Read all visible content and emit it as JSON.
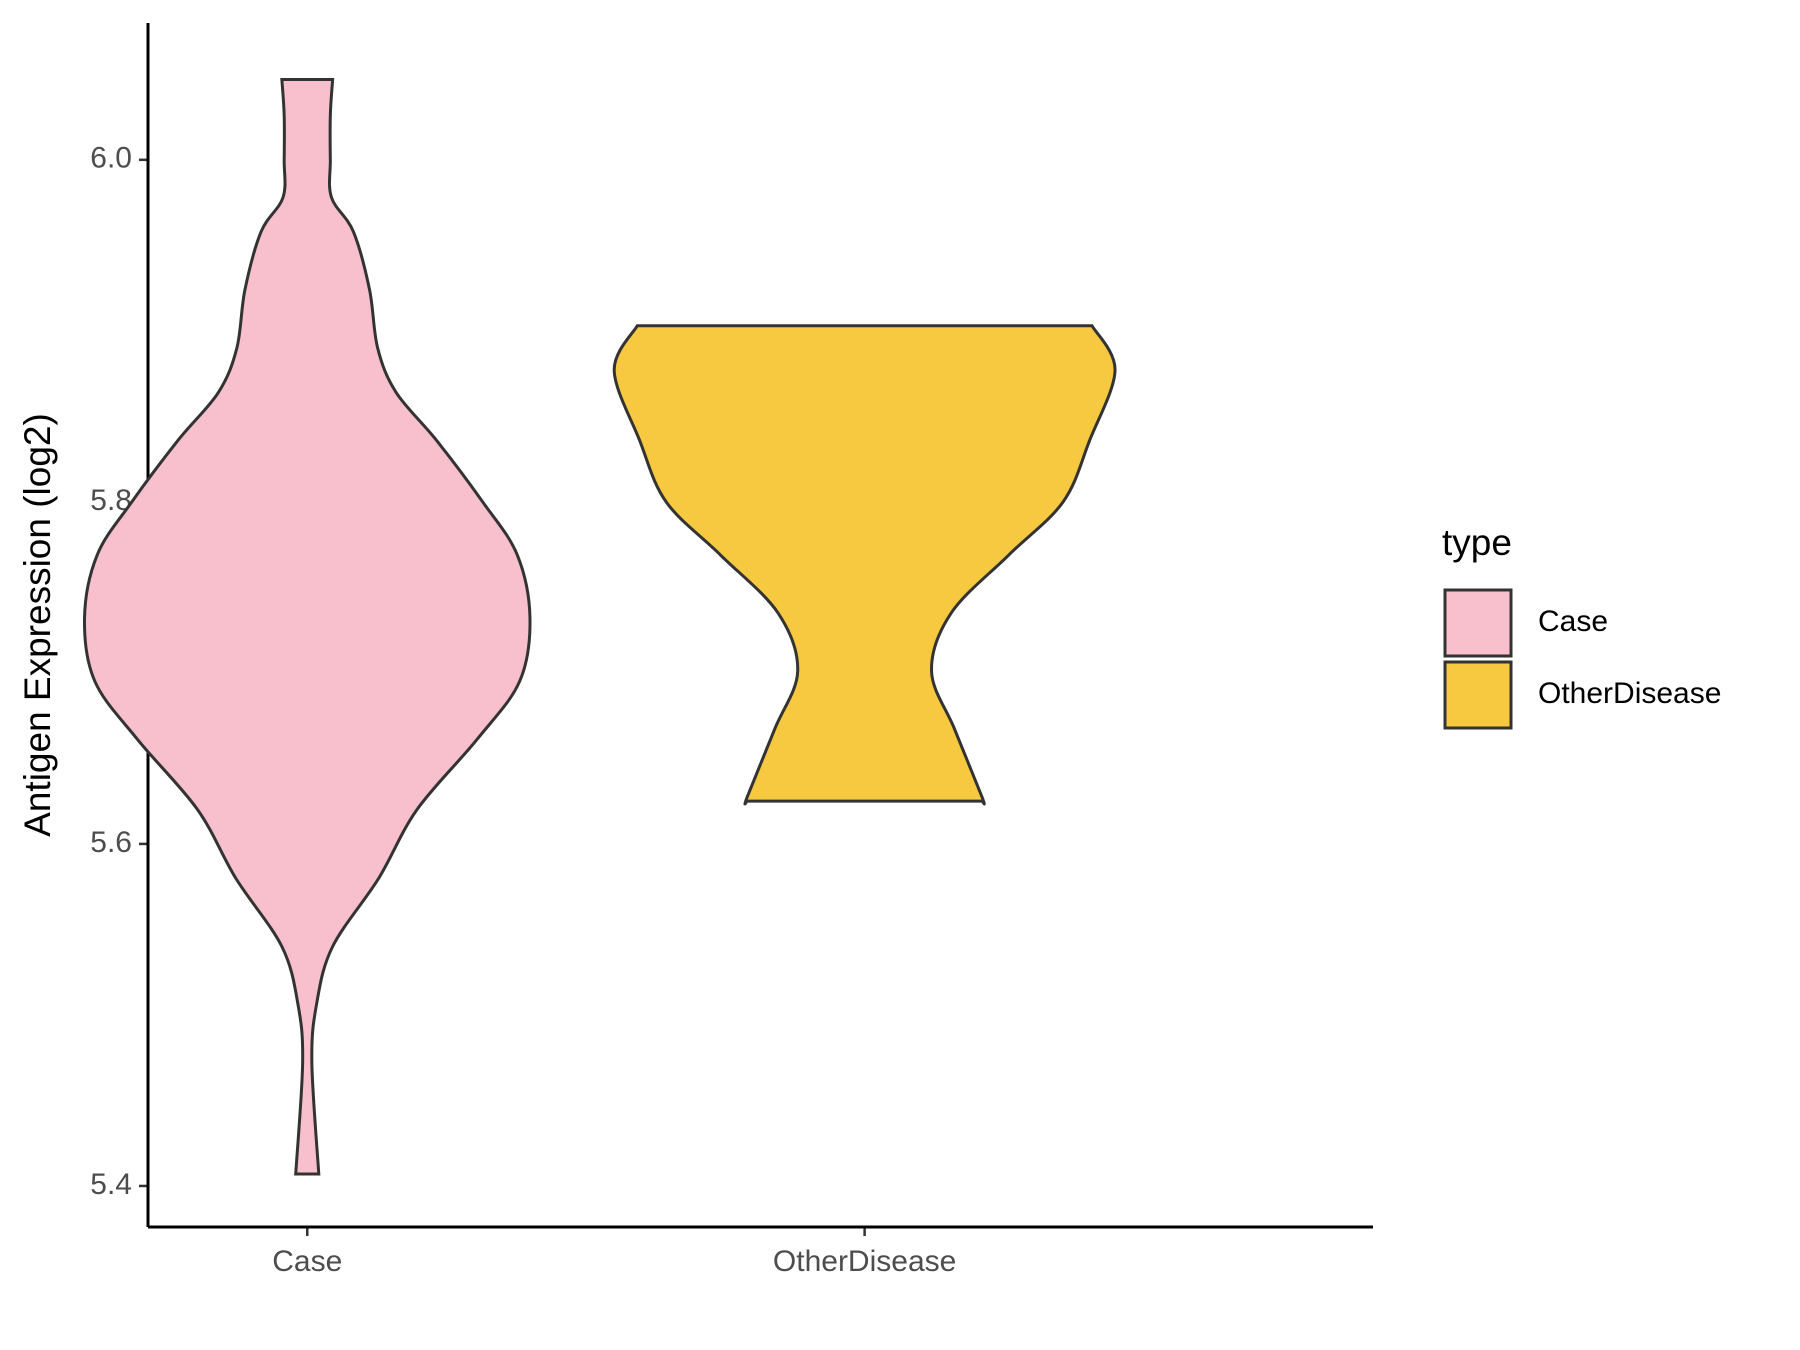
{
  "chart_data": {
    "type": "violin",
    "ylabel": "Antigen Expression (log2)",
    "categories": [
      "Case",
      "OtherDisease"
    ],
    "ylim": [
      5.376,
      6.08
    ],
    "yticks": [
      {
        "value": 5.4,
        "label": "5.4"
      },
      {
        "value": 5.6,
        "label": "5.6"
      },
      {
        "value": 5.8,
        "label": "5.8"
      },
      {
        "value": 6.0,
        "label": "6.0"
      }
    ],
    "legend_title": "type",
    "legend_position": "right",
    "series": [
      {
        "name": "Case",
        "color": "#f8c0cc",
        "y": [
          5.407,
          5.472,
          5.506,
          5.54,
          5.58,
          5.62,
          5.661,
          5.695,
          5.732,
          5.769,
          5.8,
          5.836,
          5.864,
          5.89,
          5.924,
          5.958,
          5.978,
          6.0,
          6.026,
          6.047
        ],
        "density": [
          0.1,
          0.04,
          0.08,
          0.22,
          0.62,
          0.95,
          1.47,
          1.84,
          1.93,
          1.82,
          1.52,
          1.12,
          0.77,
          0.61,
          0.54,
          0.4,
          0.21,
          0.2,
          0.2,
          0.22
        ]
      },
      {
        "name": "OtherDisease",
        "color": "#f6c940",
        "y": [
          5.625,
          5.627,
          5.667,
          5.701,
          5.735,
          5.769,
          5.8,
          5.836,
          5.877,
          5.903
        ],
        "density": [
          1.02,
          1.02,
          0.78,
          0.58,
          0.75,
          1.25,
          1.72,
          1.95,
          2.17,
          1.97
        ]
      }
    ]
  }
}
